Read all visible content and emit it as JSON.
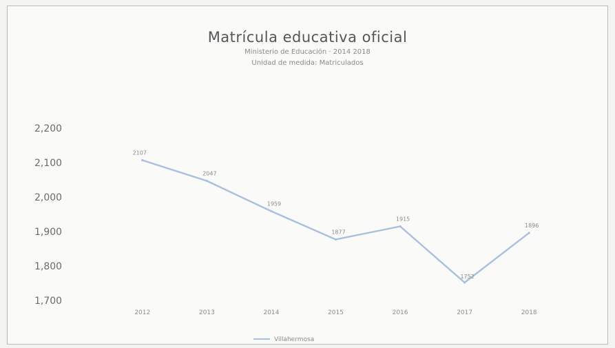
{
  "chart_data": {
    "type": "line",
    "title": "Matrícula educativa oficial",
    "subtitle_1": "Ministerio de Educación · 2014 2018",
    "subtitle_2": "Unidad de medida: Matriculados",
    "xlabel": "",
    "ylabel": "",
    "categories": [
      "2012",
      "2013",
      "2014",
      "2015",
      "2016",
      "2017",
      "2018"
    ],
    "y_ticks": [
      "2,200",
      "2,100",
      "2,000",
      "1,900",
      "1,800",
      "1,700"
    ],
    "ylim": [
      1700,
      2200
    ],
    "grid": false,
    "legend": "bottom",
    "series": [
      {
        "name": "Villahermosa",
        "values": [
          2107,
          2047,
          1959,
          1877,
          1915,
          1752,
          1896
        ],
        "labels": [
          "2107",
          "2047",
          "1959",
          "1877",
          "1915",
          "1752",
          "1896"
        ],
        "color": "#a9bfe0"
      }
    ]
  }
}
